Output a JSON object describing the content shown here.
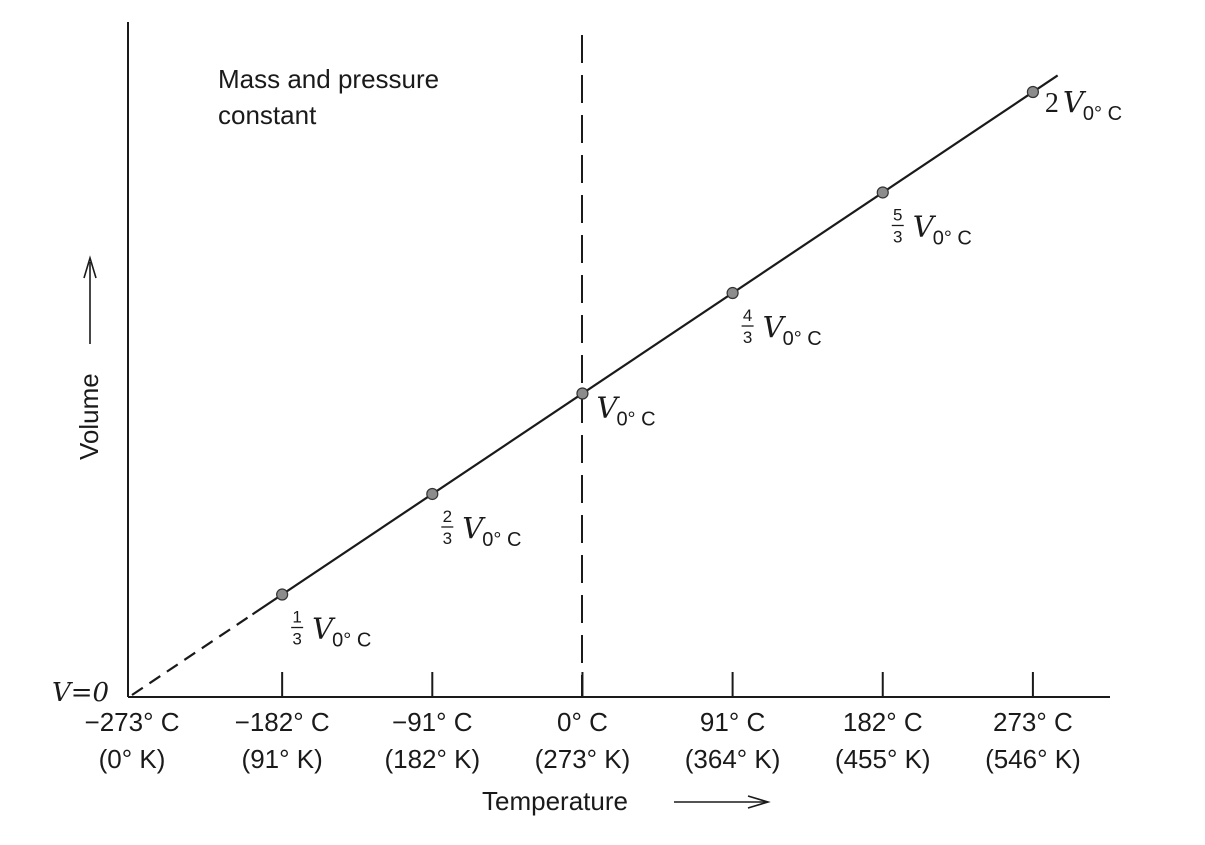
{
  "chart_data": {
    "type": "line",
    "annotation_line1": "Mass and pressure",
    "annotation_line2": "constant",
    "xlabel": "Temperature",
    "ylabel": "Volume",
    "xlim": [
      -273,
      300
    ],
    "ylim": [
      0,
      2.25
    ],
    "origin_label": "V=0",
    "reference_line": {
      "x": 0,
      "style": "dashed"
    },
    "x_ticks": [
      {
        "value": -273,
        "celsius": "−273° C",
        "kelvin": "(0° K)"
      },
      {
        "value": -182,
        "celsius": "−182° C",
        "kelvin": "(91° K)"
      },
      {
        "value": -91,
        "celsius": "−91° C",
        "kelvin": "(182° K)"
      },
      {
        "value": 0,
        "celsius": "0° C",
        "kelvin": "(273° K)"
      },
      {
        "value": 91,
        "celsius": "91° C",
        "kelvin": "(364° K)"
      },
      {
        "value": 182,
        "celsius": "182° C",
        "kelvin": "(455° K)"
      },
      {
        "value": 273,
        "celsius": "273° C",
        "kelvin": "(546° K)"
      }
    ],
    "points": [
      {
        "x": -182,
        "y": 0.3333,
        "num": "1",
        "den": "3",
        "coef": "",
        "v": "V",
        "sub": "0° C"
      },
      {
        "x": -91,
        "y": 0.6667,
        "num": "2",
        "den": "3",
        "coef": "",
        "v": "V",
        "sub": "0° C"
      },
      {
        "x": 0,
        "y": 1.0,
        "num": "",
        "den": "",
        "coef": "",
        "v": "V",
        "sub": "0° C"
      },
      {
        "x": 91,
        "y": 1.3333,
        "num": "4",
        "den": "3",
        "coef": "",
        "v": "V",
        "sub": "0° C"
      },
      {
        "x": 182,
        "y": 1.6667,
        "num": "5",
        "den": "3",
        "coef": "",
        "v": "V",
        "sub": "0° C"
      },
      {
        "x": 273,
        "y": 2.0,
        "num": "",
        "den": "",
        "coef": "2",
        "v": "V",
        "sub": "0° C"
      }
    ],
    "line_segments": [
      {
        "from": -273,
        "to": -200,
        "style": "dashed"
      },
      {
        "from": -200,
        "to": 288,
        "style": "solid"
      }
    ],
    "colors": {
      "ink": "#1a1a1a",
      "marker_fill": "#8c8c8c"
    }
  }
}
